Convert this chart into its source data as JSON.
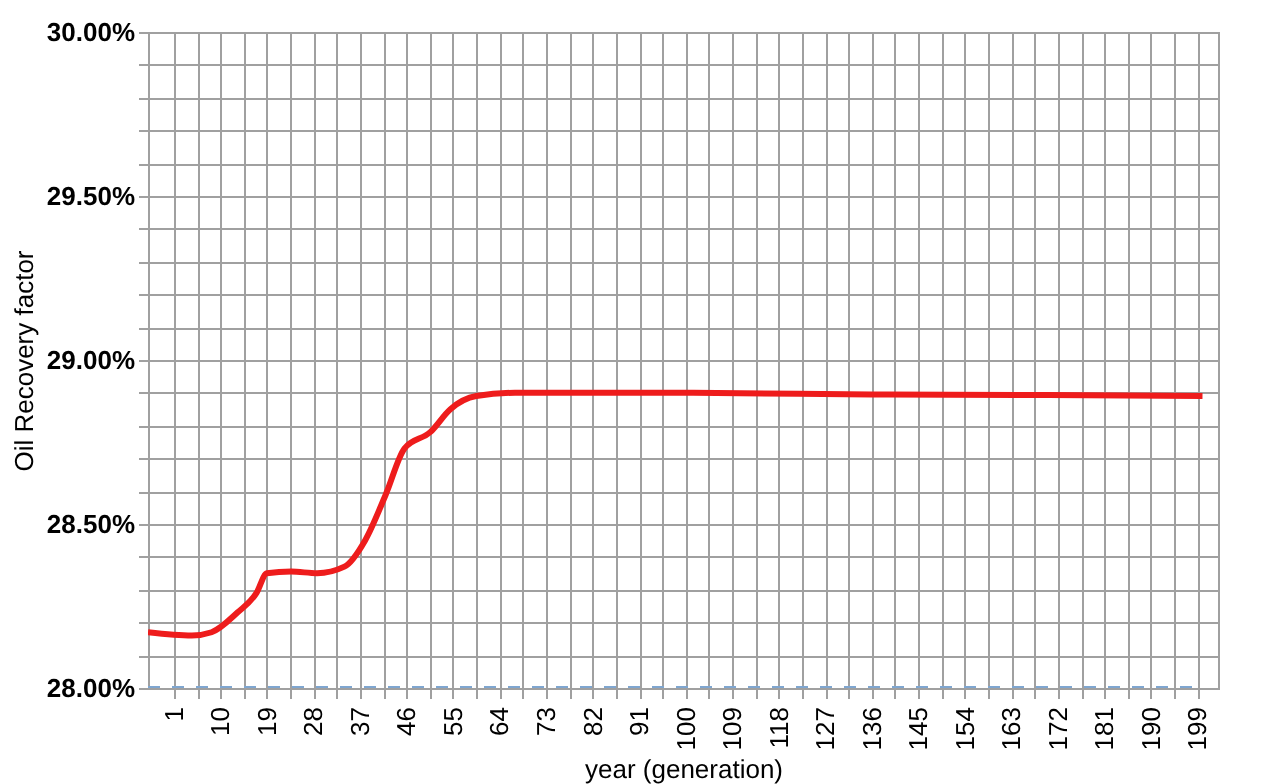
{
  "chart_data": {
    "type": "line",
    "xlabel": "year (generation)",
    "ylabel": "Oil Recovery factor",
    "xlim": [
      -4,
      203
    ],
    "xticks": [
      1,
      {
        "value": 5.5,
        "label": null
      },
      10,
      {
        "value": 14.5,
        "label": null
      },
      19,
      {
        "value": 23.5,
        "label": null
      },
      28,
      {
        "value": 32.5,
        "label": null
      },
      37,
      {
        "value": 41.5,
        "label": null
      },
      46,
      {
        "value": 50.5,
        "label": null
      },
      55,
      {
        "value": 59.5,
        "label": null
      },
      64,
      {
        "value": 68.5,
        "label": null
      },
      73,
      {
        "value": 77.5,
        "label": null
      },
      82,
      {
        "value": 86.5,
        "label": null
      },
      91,
      {
        "value": 95.5,
        "label": null
      },
      100,
      {
        "value": 104.5,
        "label": null
      },
      109,
      {
        "value": 113.5,
        "label": null
      },
      118,
      {
        "value": 122.5,
        "label": null
      },
      127,
      {
        "value": 131.5,
        "label": null
      },
      136,
      {
        "value": 140.5,
        "label": null
      },
      145,
      {
        "value": 149.5,
        "label": null
      },
      154,
      {
        "value": 158.5,
        "label": null
      },
      163,
      {
        "value": 167.5,
        "label": null
      },
      172,
      {
        "value": 176.5,
        "label": null
      },
      181,
      {
        "value": 185.5,
        "label": null
      },
      190,
      {
        "value": 194.5,
        "label": null
      },
      199
    ],
    "ylim": [
      28,
      30
    ],
    "yticks": [
      {
        "value": 28,
        "label": "28.00%"
      },
      {
        "value": 28.1,
        "label": null
      },
      {
        "value": 28.2,
        "label": null
      },
      {
        "value": 28.3,
        "label": null
      },
      {
        "value": 28.4,
        "label": null
      },
      {
        "value": 28.5,
        "label": "28.50%"
      },
      {
        "value": 28.6,
        "label": null
      },
      {
        "value": 28.7,
        "label": null
      },
      {
        "value": 28.8,
        "label": null
      },
      {
        "value": 28.9,
        "label": null
      },
      {
        "value": 29,
        "label": "29.00%"
      },
      {
        "value": 29.1,
        "label": null
      },
      {
        "value": 29.2,
        "label": null
      },
      {
        "value": 29.3,
        "label": null
      },
      {
        "value": 29.4,
        "label": null
      },
      {
        "value": 29.5,
        "label": "29.50%"
      },
      {
        "value": 29.6,
        "label": null
      },
      {
        "value": 29.7,
        "label": null
      },
      {
        "value": 29.8,
        "label": null
      },
      {
        "value": 29.9,
        "label": null
      },
      {
        "value": 30,
        "label": "30.00%"
      }
    ],
    "grid": true,
    "series": [
      {
        "color": "#ee1c1c",
        "line_style": "solid",
        "x": [
          -4,
          4.5,
          8.3,
          13.3,
          17,
          19,
          23.7,
          28.7,
          34,
          38,
          42,
          45.6,
          50.6,
          54.5,
          59.5,
          67,
          100,
          136,
          170,
          200
        ],
        "values": [
          28.17,
          28.16,
          28.17,
          28.23,
          28.29,
          28.35,
          28.355,
          28.35,
          28.37,
          28.45,
          28.59,
          28.73,
          28.78,
          28.85,
          28.89,
          28.9,
          28.9,
          28.895,
          28.893,
          28.89
        ]
      },
      {
        "color": "#7fa6d0",
        "line_style": "dashed",
        "x": [
          -4,
          200
        ],
        "values": [
          28,
          28
        ]
      }
    ]
  }
}
